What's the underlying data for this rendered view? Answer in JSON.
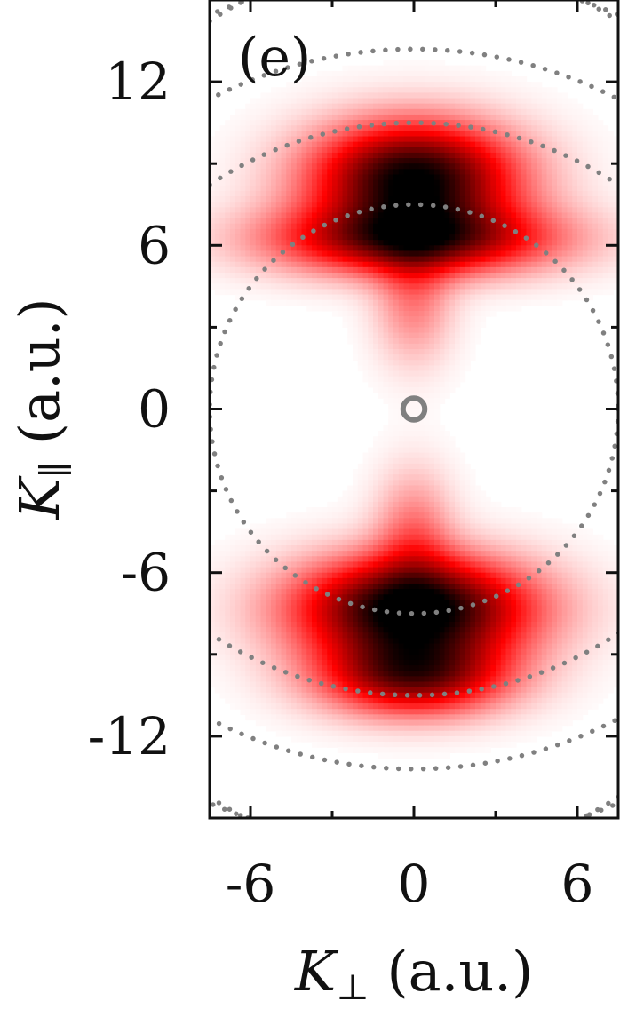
{
  "chart_data": {
    "type": "heatmap",
    "panel_label": "(e)",
    "xlabel": {
      "symbol": "K",
      "subscript": "⊥",
      "unit": " (a.u.)"
    },
    "ylabel": {
      "symbol": "K",
      "subscript": "∥",
      "unit": " (a.u.)"
    },
    "xlim": [
      -7.5,
      7.5
    ],
    "ylim": [
      -15,
      15
    ],
    "x_ticks": [
      -6,
      0,
      6
    ],
    "y_ticks": [
      -12,
      -6,
      0,
      6,
      12
    ],
    "x_tick_labels": [
      "-6",
      "0",
      "6"
    ],
    "y_tick_labels": [
      "-12",
      "-6",
      "0",
      "6",
      "12"
    ],
    "colormap": [
      "#ffffff",
      "#ff0000",
      "#000000"
    ],
    "dotted_rings": {
      "color": "#808080",
      "style": "dotted",
      "center_ring": {
        "center": [
          0,
          0
        ],
        "radius": 7.5
      },
      "upper_arcs": [
        {
          "center": [
            0,
            -3
          ],
          "radius": 13.5
        },
        {
          "center": [
            0,
            -3
          ],
          "radius": 16.2
        },
        {
          "center": [
            0,
            -3
          ],
          "radius": 19.0
        }
      ],
      "lower_arcs": [
        {
          "center": [
            0,
            3
          ],
          "radius": 13.5
        },
        {
          "center": [
            0,
            3
          ],
          "radius": 16.2
        },
        {
          "center": [
            0,
            3
          ],
          "radius": 19.0
        }
      ]
    },
    "origin_marker": {
      "center": [
        0,
        0
      ],
      "radius": 0.4,
      "color": "#808080"
    },
    "intensity_lobes": [
      {
        "kperp": 0,
        "kpar": 8.5,
        "w_perp": 2.6,
        "w_par": 1.4,
        "amp": 1.0
      },
      {
        "kperp": 0,
        "kpar": 6.2,
        "w_perp": 3.6,
        "w_par": 0.9,
        "amp": 0.75
      },
      {
        "kperp": 0,
        "kpar": 4.0,
        "w_perp": 1.0,
        "w_par": 1.6,
        "amp": 0.25
      },
      {
        "kperp": 0,
        "kpar": -7.3,
        "w_perp": 3.0,
        "w_par": 1.3,
        "amp": 1.05
      },
      {
        "kperp": 0,
        "kpar": -9.8,
        "w_perp": 2.4,
        "w_par": 1.0,
        "amp": 0.75
      },
      {
        "kperp": 0,
        "kpar": -4.5,
        "w_perp": 1.0,
        "w_par": 1.6,
        "amp": 0.25
      }
    ]
  }
}
